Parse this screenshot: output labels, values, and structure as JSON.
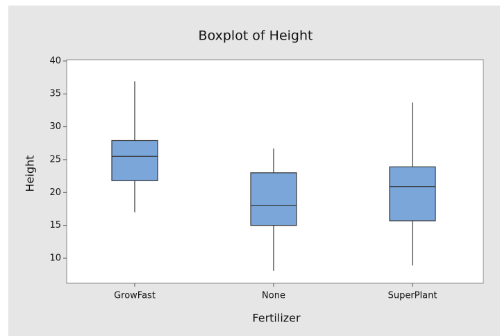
{
  "chart_data": {
    "type": "box",
    "title": "Boxplot of Height",
    "xlabel": "Fertilizer",
    "ylabel": "Height",
    "categories": [
      "GrowFast",
      "None",
      "SuperPlant"
    ],
    "boxes": [
      {
        "min": 17.0,
        "q1": 21.8,
        "median": 25.5,
        "q3": 27.9,
        "max": 36.9
      },
      {
        "min": 8.1,
        "q1": 15.0,
        "median": 18.0,
        "q3": 23.0,
        "max": 26.7
      },
      {
        "min": 8.9,
        "q1": 15.7,
        "median": 20.9,
        "q3": 23.9,
        "max": 33.7
      }
    ],
    "color": "#7ba6da",
    "ylim": [
      6.2,
      40.2
    ],
    "yticks": [
      10,
      15,
      20,
      25,
      30,
      35,
      40
    ]
  }
}
